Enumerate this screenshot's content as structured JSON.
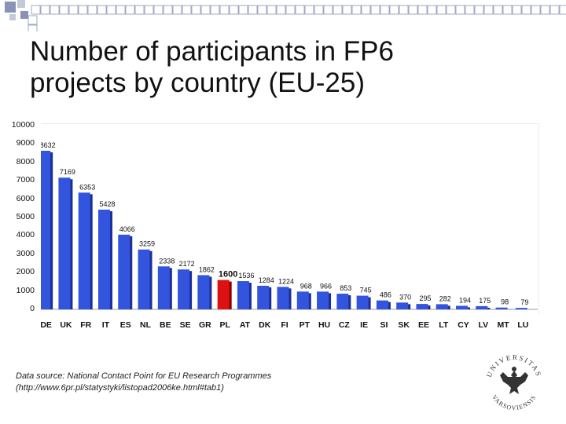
{
  "slide": {
    "title_line1": "Number of participants in FP6",
    "title_line2": "projects by country (EU-25)",
    "source_line1": "Data source: National Contact Point for EU Research Programmes",
    "source_line2": "(http://www.6pr.pl/statystyki/listopad2006ke.html#tab1)",
    "logo_text_top": "UNIVERSITAS",
    "logo_text_bottom": "VARSOVIENSIS"
  },
  "colors": {
    "bar": "#3355dd",
    "bar_dark": "#1a2f99",
    "highlight": "#dd1111",
    "highlight_dark": "#880000",
    "deco_square": "#8a92b8",
    "deco_square_light": "#c3c8dc",
    "deco_outline": "#8a92b8",
    "seal": "#333333"
  },
  "chart_data": {
    "type": "bar",
    "title": "",
    "xlabel": "",
    "ylabel": "",
    "ylim": [
      0,
      10000
    ],
    "yticks": [
      0,
      1000,
      2000,
      3000,
      4000,
      5000,
      6000,
      7000,
      8000,
      9000,
      10000
    ],
    "grid": false,
    "legend": "none",
    "highlight_category": "PL",
    "categories": [
      "DE",
      "UK",
      "FR",
      "IT",
      "ES",
      "NL",
      "BE",
      "SE",
      "GR",
      "PL",
      "AT",
      "DK",
      "FI",
      "PT",
      "HU",
      "CZ",
      "IE",
      "SI",
      "SK",
      "EE",
      "LT",
      "CY",
      "LV",
      "MT",
      "LU"
    ],
    "values": [
      8632,
      7169,
      6353,
      5428,
      4066,
      3259,
      2338,
      2172,
      1862,
      1600,
      1536,
      1284,
      1224,
      968,
      966,
      853,
      745,
      486,
      370,
      295,
      282,
      194,
      175,
      98,
      79
    ]
  }
}
